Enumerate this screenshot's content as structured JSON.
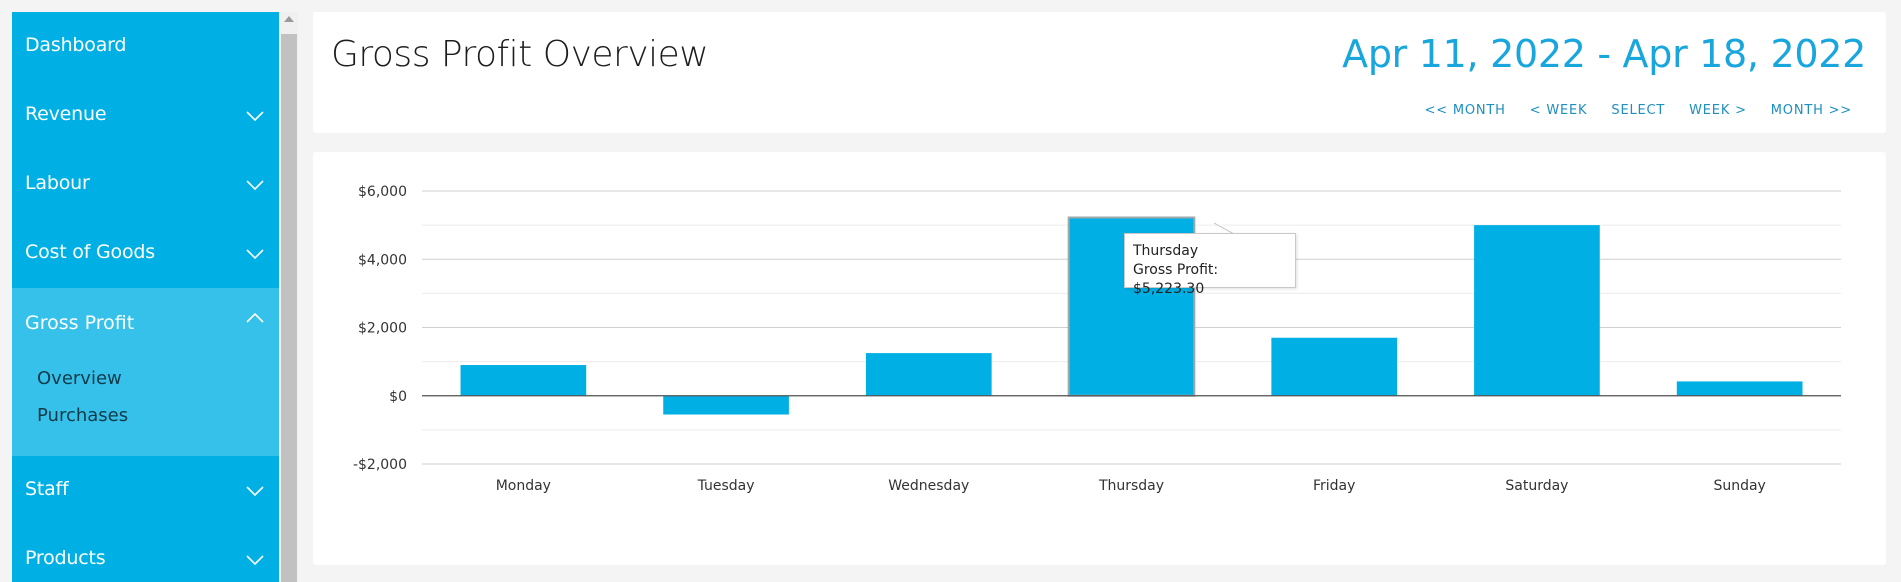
{
  "sidebar": {
    "items": [
      {
        "label": "Dashboard"
      },
      {
        "label": "Revenue"
      },
      {
        "label": "Labour"
      },
      {
        "label": "Cost of Goods"
      },
      {
        "label": "Gross Profit",
        "expanded": true,
        "children": [
          {
            "label": "Overview"
          },
          {
            "label": "Purchases"
          }
        ]
      },
      {
        "label": "Staff"
      },
      {
        "label": "Products"
      }
    ]
  },
  "header": {
    "title": "Gross Profit Overview",
    "date_range": "Apr 11, 2022 - Apr 18, 2022",
    "nav": [
      "<< MONTH",
      "< WEEK",
      "SELECT",
      "WEEK >",
      "MONTH >>"
    ]
  },
  "tooltip": {
    "category": "Thursday",
    "series": "Gross Profit",
    "value": "$5,223.30"
  },
  "colors": {
    "accent": "#00b0e4",
    "sidebar_active": "#35c1ea",
    "date_text": "#18a6dc",
    "bar": "#00b0e4"
  },
  "chart_data": {
    "type": "bar",
    "categories": [
      "Monday",
      "Tuesday",
      "Wednesday",
      "Thursday",
      "Friday",
      "Saturday",
      "Sunday"
    ],
    "series": [
      {
        "name": "Gross Profit",
        "values": [
          900,
          -550,
          1250,
          5223.3,
          1700,
          5000,
          420
        ]
      }
    ],
    "ylim": [
      -2000,
      6000
    ],
    "yticks": [
      6000,
      4000,
      2000,
      0,
      -2000
    ],
    "ytick_labels": [
      "$6,000",
      "$4,000",
      "$2,000",
      "$0",
      "-$2,000"
    ],
    "grid": true,
    "highlighted_category": "Thursday"
  }
}
